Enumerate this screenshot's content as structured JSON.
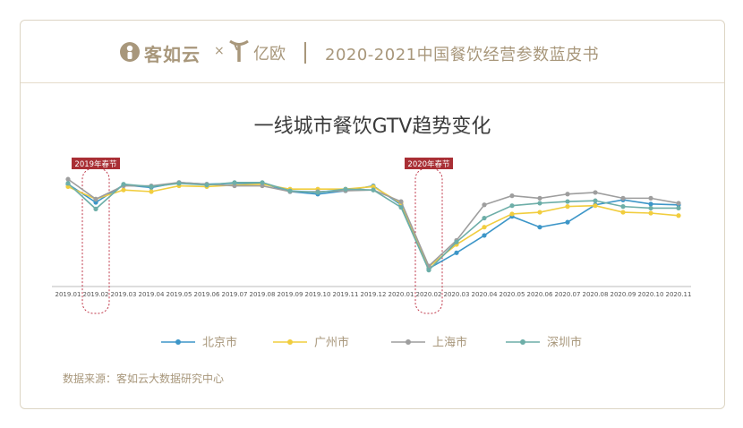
{
  "header": {
    "brand_primary": "客如云",
    "times_sign": "×",
    "brand_secondary": "亿欧",
    "book_title": "2020-2021中国餐饮经营参数蓝皮书",
    "brand_color": "#a8977b"
  },
  "footer": {
    "source": "数据来源：客如云大数据研究中心"
  },
  "chart_data": {
    "type": "line",
    "title": "一线城市餐饮GTV趋势变化",
    "xlabel": "",
    "ylabel": "",
    "ylim": [
      0,
      130
    ],
    "grid": false,
    "legend_position": "bottom",
    "categories": [
      "2019.01",
      "2019.02",
      "2019.03",
      "2019.04",
      "2019.05",
      "2019.06",
      "2019.07",
      "2019.08",
      "2019.09",
      "2019.10",
      "2019.11",
      "2019.12",
      "2020.01",
      "2020.02",
      "2020.03",
      "2020.04",
      "2020.05",
      "2020.06",
      "2020.07",
      "2020.08",
      "2020.09",
      "2020.10",
      "2020.11"
    ],
    "series": [
      {
        "name": "北京市",
        "color": "#3d96c8",
        "values": [
          113,
          91,
          112,
          109,
          115,
          113,
          114,
          114,
          104,
          101,
          105,
          111,
          88,
          11,
          30,
          51,
          74,
          61,
          67,
          88,
          94,
          89,
          88
        ]
      },
      {
        "name": "广州市",
        "color": "#f1cd3e",
        "values": [
          110,
          95,
          106,
          104,
          111,
          110,
          112,
          113,
          107,
          107,
          107,
          110,
          90,
          13,
          40,
          61,
          77,
          79,
          86,
          87,
          79,
          78,
          75
        ]
      },
      {
        "name": "上海市",
        "color": "#9e9e9e",
        "values": [
          119,
          95,
          111,
          111,
          115,
          113,
          111,
          111,
          104,
          104,
          105,
          106,
          92,
          14,
          45,
          88,
          99,
          96,
          101,
          103,
          96,
          96,
          90
        ]
      },
      {
        "name": "深圳市",
        "color": "#6daea8",
        "values": [
          114,
          83,
          113,
          110,
          114,
          112,
          115,
          115,
          105,
          103,
          107,
          106,
          85,
          9,
          43,
          72,
          87,
          90,
          92,
          93,
          86,
          84,
          84
        ]
      }
    ],
    "annotations": [
      {
        "label": "2019年春节",
        "category": "2019.02"
      },
      {
        "label": "2020年春节",
        "category": "2020.02"
      }
    ]
  }
}
